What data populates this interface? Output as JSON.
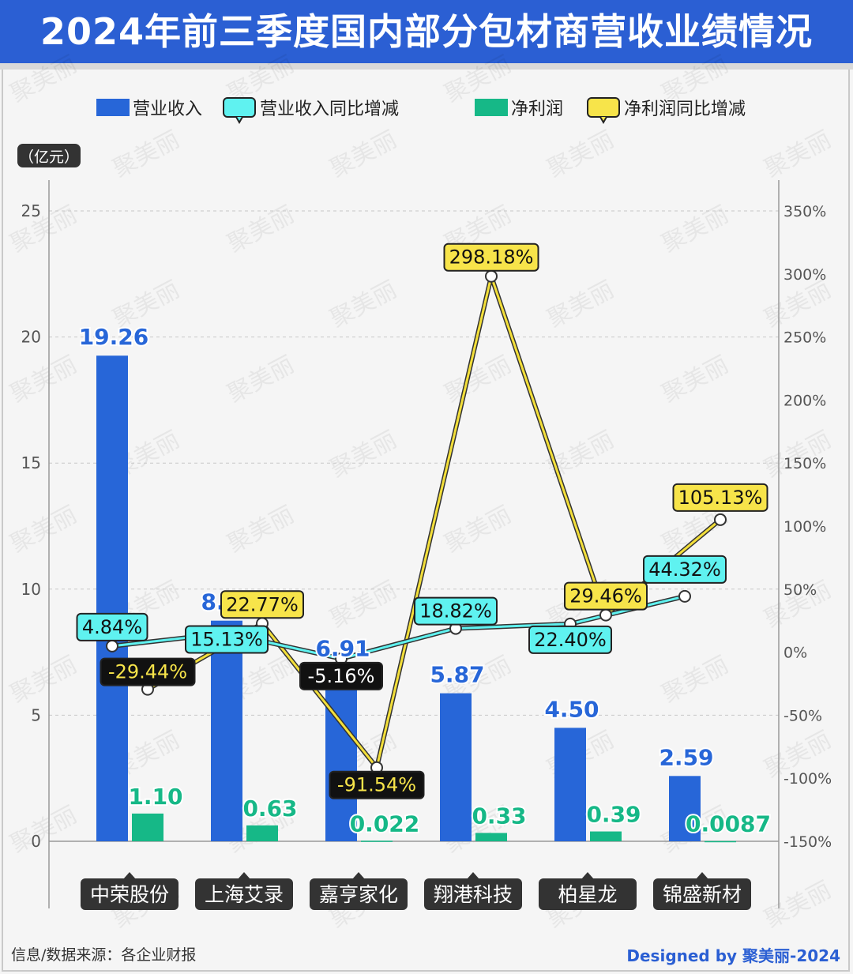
{
  "title": "2024年前三季度国内部分包材商营收业绩情况",
  "unit_label": "（亿元）",
  "source_text": "信息/数据来源：各企业财报",
  "credit_text": "Designed by 聚美丽-2024",
  "watermark": "聚美丽",
  "colors": {
    "revenue": "#2766d8",
    "net_profit": "#16b887",
    "revenue_yoy_line": "#3aa8b4",
    "revenue_yoy_label": "#5ff2f0",
    "profit_yoy_line": "#b8a62c",
    "profit_yoy_label": "#f7e44a",
    "negative_label": "#111111",
    "category_label": "#333333"
  },
  "chart_data": {
    "type": "bar",
    "categories": [
      "中荣股份",
      "上海艾录",
      "嘉亨家化",
      "翔港科技",
      "柏星龙",
      "锦盛新材"
    ],
    "series": [
      {
        "name": "营业收入",
        "type": "bar",
        "axis": "left",
        "values": [
          19.26,
          8.75,
          6.91,
          5.87,
          4.5,
          2.59
        ],
        "labels": [
          "19.26",
          "8.75",
          "6.91",
          "5.87",
          "4.50",
          "2.59"
        ]
      },
      {
        "name": "净利润",
        "type": "bar",
        "axis": "left",
        "values": [
          1.1,
          0.63,
          0.022,
          0.33,
          0.39,
          0.0087
        ],
        "labels": [
          "1.10",
          "0.63",
          "0.022",
          "0.33",
          "0.39",
          "0.0087"
        ]
      },
      {
        "name": "营业收入同比增减",
        "type": "line",
        "axis": "right",
        "values": [
          4.84,
          15.13,
          -5.16,
          18.82,
          22.4,
          44.32
        ],
        "labels": [
          "4.84%",
          "15.13%",
          "-5.16%",
          "18.82%",
          "22.40%",
          "44.32%"
        ]
      },
      {
        "name": "净利润同比增减",
        "type": "line",
        "axis": "right",
        "values": [
          -29.44,
          22.77,
          -91.54,
          298.18,
          29.46,
          105.13
        ],
        "labels": [
          "-29.44%",
          "22.77%",
          "-91.54%",
          "298.18%",
          "29.46%",
          "105.13%"
        ]
      }
    ],
    "y_left": {
      "ylim": [
        0,
        25
      ],
      "ticks": [
        "0",
        "5",
        "10",
        "15",
        "20",
        "25"
      ]
    },
    "y_right": {
      "ylim": [
        -150,
        350
      ],
      "ticks": [
        "-150%",
        "-100%",
        "-50%",
        "0%",
        "50%",
        "100%",
        "150%",
        "200%",
        "250%",
        "300%",
        "350%"
      ]
    },
    "grid": true,
    "legend_position": "top"
  }
}
